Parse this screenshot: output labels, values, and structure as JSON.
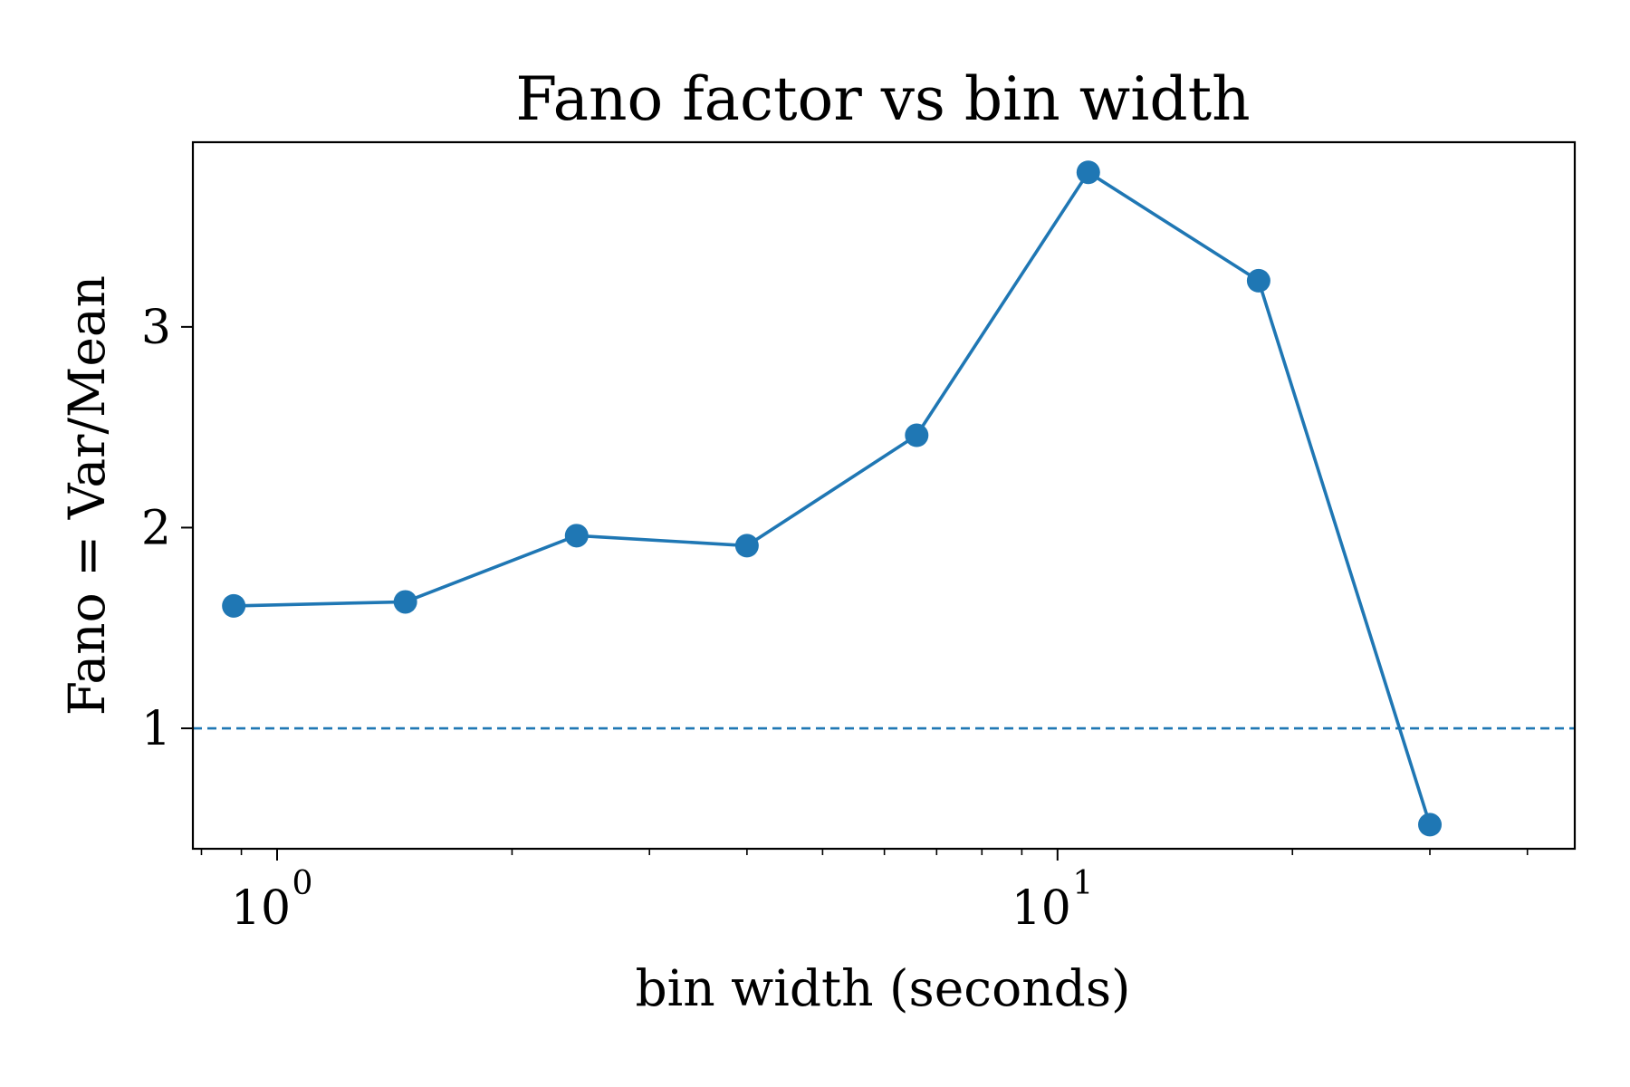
{
  "chart_data": {
    "type": "line",
    "title": "Fano factor vs bin width",
    "xlabel": "bin width (seconds)",
    "ylabel": "Fano = Var/Mean",
    "xscale": "log",
    "xlim": [
      0.78,
      46
    ],
    "ylim": [
      0.4,
      3.92
    ],
    "x_ticks": [
      {
        "base": "10",
        "exp": "0",
        "value": 1
      },
      {
        "base": "10",
        "exp": "1",
        "value": 10
      }
    ],
    "y_ticks": [
      {
        "label": "1",
        "value": 1
      },
      {
        "label": "2",
        "value": 2
      },
      {
        "label": "3",
        "value": 3
      }
    ],
    "grid": false,
    "series": [
      {
        "x": [
          0.88,
          1.46,
          2.42,
          4.0,
          6.6,
          10.95,
          18.1,
          30.0
        ],
        "y": [
          1.61,
          1.63,
          1.96,
          1.91,
          2.46,
          3.77,
          3.23,
          0.52
        ],
        "color": "#1f77b4",
        "marker": "circle"
      }
    ],
    "reference_lines": [
      {
        "y": 1,
        "style": "dashed",
        "color": "#1f77b4"
      }
    ]
  }
}
